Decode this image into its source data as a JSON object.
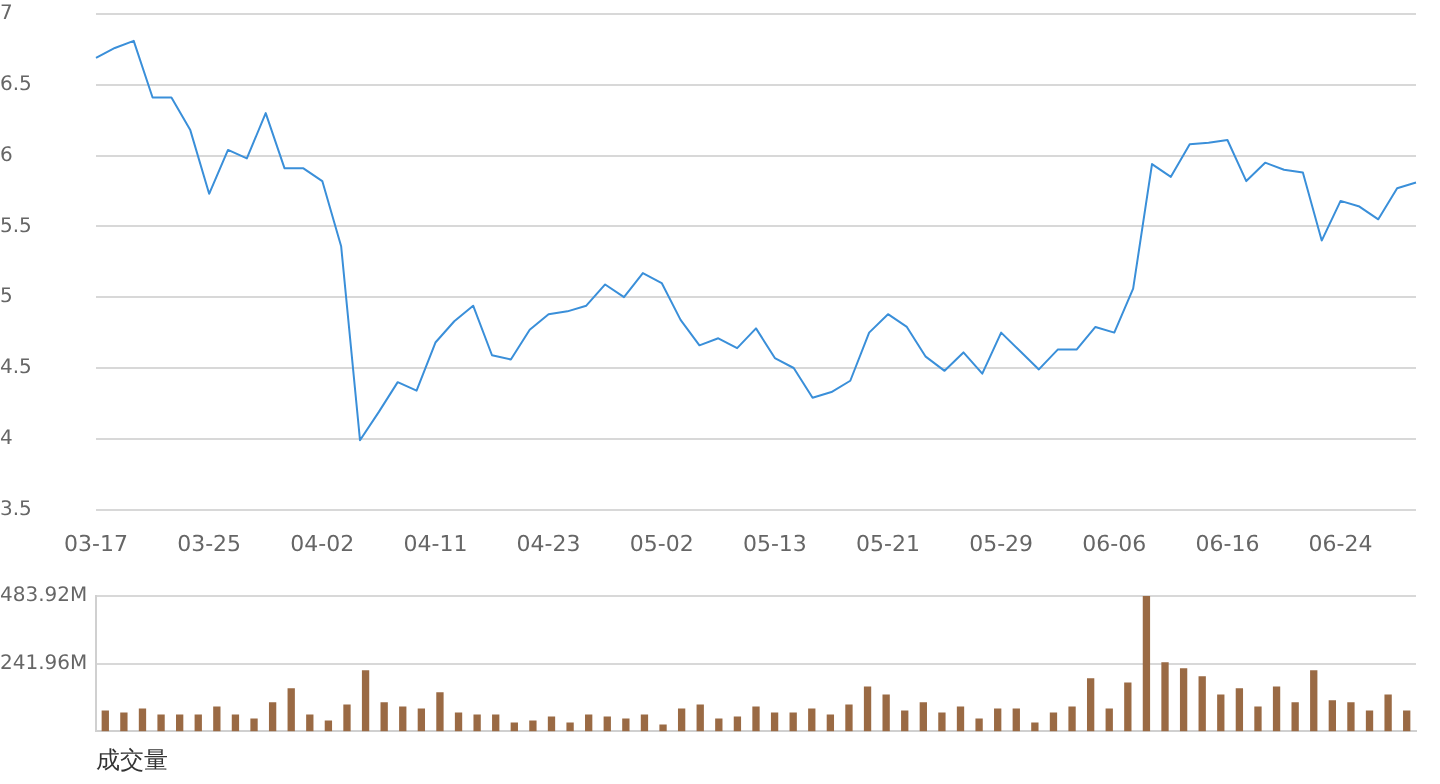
{
  "chart_data": [
    {
      "type": "line",
      "categories": [
        "03-17",
        null,
        null,
        null,
        null,
        null,
        "03-25",
        null,
        null,
        null,
        null,
        null,
        "04-02",
        null,
        null,
        null,
        null,
        null,
        "04-11",
        null,
        null,
        null,
        null,
        null,
        "04-23",
        null,
        null,
        null,
        null,
        null,
        "05-02",
        null,
        null,
        null,
        null,
        null,
        "05-13",
        null,
        null,
        null,
        null,
        null,
        "05-21",
        null,
        null,
        null,
        null,
        null,
        "05-29",
        null,
        null,
        null,
        null,
        null,
        "06-06",
        null,
        null,
        null,
        null,
        null,
        "06-16",
        null,
        null,
        null,
        null,
        null,
        "06-24",
        null,
        null,
        null,
        null
      ],
      "series": [
        {
          "color": "#3a8fd9",
          "values": [
            6.69,
            6.76,
            6.81,
            6.41,
            6.41,
            6.18,
            5.73,
            6.04,
            5.98,
            6.3,
            5.91,
            5.91,
            5.82,
            5.36,
            3.99,
            4.19,
            4.4,
            4.34,
            4.68,
            4.83,
            4.94,
            4.59,
            4.56,
            4.77,
            4.88,
            4.9,
            4.94,
            5.09,
            5.0,
            5.17,
            5.1,
            4.84,
            4.66,
            4.71,
            4.64,
            4.78,
            4.57,
            4.5,
            4.29,
            4.33,
            4.41,
            4.75,
            4.88,
            4.79,
            4.58,
            4.48,
            4.61,
            4.46,
            4.75,
            4.62,
            4.49,
            4.63,
            4.63,
            4.79,
            4.75,
            5.06,
            5.94,
            5.85,
            6.08,
            6.09,
            6.11,
            5.82,
            5.95,
            5.9,
            5.88,
            5.4,
            5.68,
            5.64,
            5.55,
            5.77,
            5.81
          ]
        }
      ],
      "ylim": [
        3.5,
        7
      ],
      "yticks": [
        3.5,
        4,
        4.5,
        5,
        5.5,
        6,
        6.5,
        7
      ],
      "grid": "y",
      "marker": "none",
      "line_style": "solid"
    },
    {
      "type": "bar",
      "xlabel": "成交量",
      "categories": [
        null,
        null,
        null,
        null,
        null,
        null,
        null,
        null,
        null,
        null,
        null,
        null,
        null,
        null,
        null,
        null,
        null,
        null,
        null,
        null,
        null,
        null,
        null,
        null,
        null,
        null,
        null,
        null,
        null,
        null,
        null,
        null,
        null,
        null,
        null,
        null,
        null,
        null,
        null,
        null,
        null,
        null,
        null,
        null,
        null,
        null,
        null,
        null,
        null,
        null,
        null,
        null,
        null,
        null,
        null,
        null,
        null,
        null,
        null,
        null,
        null,
        null,
        null,
        null,
        null,
        null,
        null,
        null,
        null,
        null,
        null
      ],
      "series": [
        {
          "color": "#9a6a44",
          "values": [
            72,
            65,
            79,
            57,
            57,
            57,
            86,
            57,
            43,
            101,
            151,
            57,
            36,
            93,
            216,
            101,
            86,
            79,
            137,
            65,
            57,
            57,
            29,
            36,
            50,
            29,
            57,
            50,
            43,
            57,
            22,
            79,
            93,
            43,
            50,
            86,
            65,
            65,
            79,
            57,
            93,
            158,
            129,
            72,
            101,
            65,
            86,
            43,
            79,
            79,
            29,
            65,
            86,
            187,
            79,
            172,
            483,
            244,
            223,
            194,
            129,
            151,
            86,
            158,
            101,
            216,
            108,
            101,
            72,
            129,
            72
          ]
        }
      ],
      "ylim": [
        0,
        483.92
      ],
      "yticks": [
        {
          "value": 241.96,
          "label": "241.96M"
        },
        {
          "value": 483.92,
          "label": "483.92M"
        }
      ],
      "grid": "y",
      "tick_labels": "y"
    }
  ]
}
